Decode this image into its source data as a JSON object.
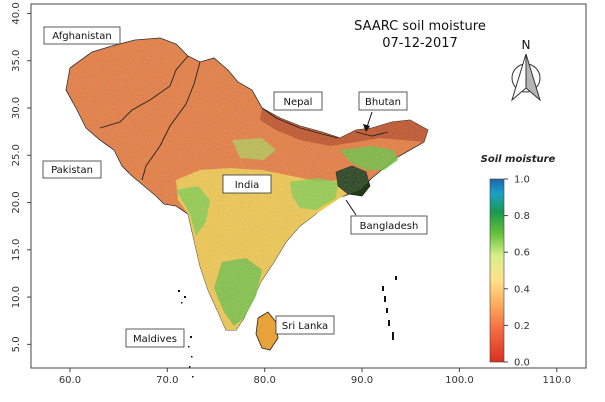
{
  "title": {
    "line1": "SAARC soil moisture",
    "line2": "07-12-2017"
  },
  "north_arrow": {
    "label": "N",
    "icon": "north-arrow-icon"
  },
  "axes": {
    "x_ticks": [
      "60.0",
      "70.0",
      "80.0",
      "90.0",
      "100.0",
      "110.0"
    ],
    "y_ticks": [
      "5.0",
      "10.0",
      "15.0",
      "20.0",
      "25.0",
      "30.0",
      "35.0",
      "40.0"
    ],
    "x_range": [
      56,
      113
    ],
    "y_range": [
      2.5,
      41
    ]
  },
  "labels": {
    "afghanistan": "Afghanistan",
    "pakistan": "Pakistan",
    "india": "India",
    "nepal": "Nepal",
    "bhutan": "Bhutan",
    "bangladesh": "Bangladesh",
    "sri_lanka": "Sri Lanka",
    "maldives": "Maldives"
  },
  "legend": {
    "title": "Soil moisture",
    "ticks": [
      "1.0",
      "0.8",
      "0.6",
      "0.4",
      "0.2",
      "0.0"
    ],
    "colors": [
      "#d7301f",
      "#f46d43",
      "#fdae61",
      "#fee08b",
      "#d9ef8b",
      "#66c23a",
      "#1a9850",
      "#1aa0c8",
      "#2166ac"
    ]
  }
}
